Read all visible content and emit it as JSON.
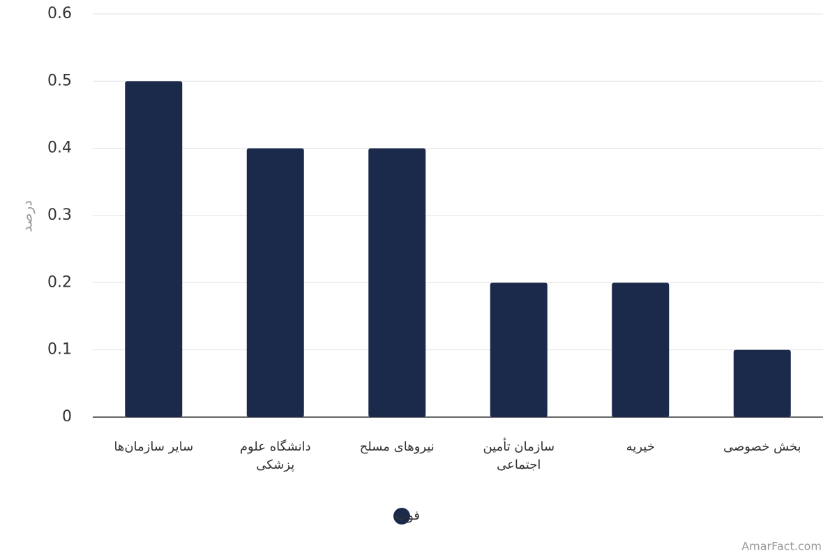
{
  "chart_data": {
    "type": "bar",
    "y_label": "درصد",
    "categories": [
      "سایر سازمان‌ها",
      "دانشگاه علوم پزشکی",
      "نیروهای مسلح",
      "سازمان تأمین اجتماعی",
      "خیریه",
      "بخش خصوصی"
    ],
    "series": [
      {
        "name": "فوت",
        "color": "#1b2a4b",
        "values": [
          0.5,
          0.4,
          0.4,
          0.2,
          0.2,
          0.1
        ]
      }
    ],
    "ylim": [
      0,
      0.6
    ],
    "yticks": [
      0,
      0.1,
      0.2,
      0.3,
      0.4,
      0.5,
      0.6
    ],
    "grid": true,
    "legend": "bottom",
    "credit": "AmarFact.com"
  }
}
